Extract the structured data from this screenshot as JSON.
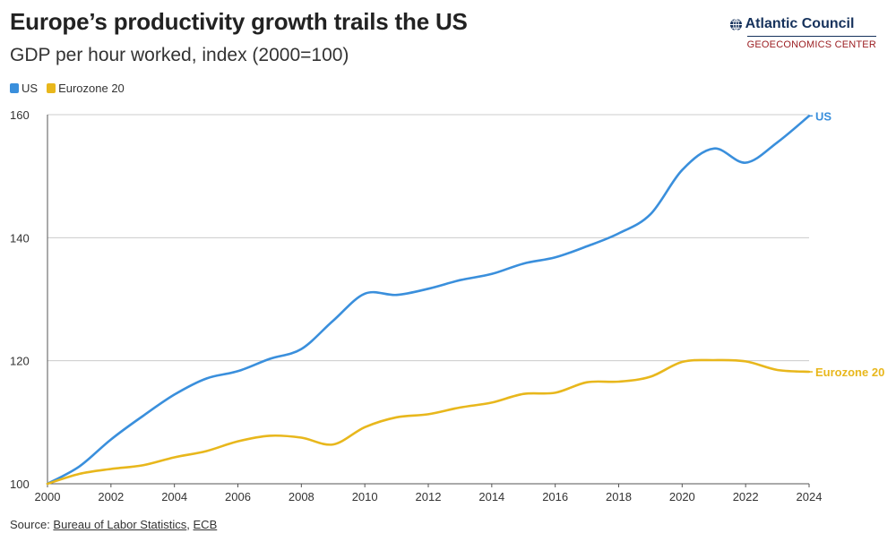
{
  "header": {
    "title": "Europe’s productivity growth trails the US",
    "subtitle": "GDP per hour worked, index (2000=100)"
  },
  "brand": {
    "name": "Atlantic Council",
    "center": "GEOECONOMICS CENTER"
  },
  "source": {
    "prefix": "Source: ",
    "link1": "Bureau of Labor Statistics",
    "sep": ", ",
    "link2": "ECB"
  },
  "chart_data": {
    "type": "line",
    "title": "Europe’s productivity growth trails the US",
    "subtitle": "GDP per hour worked, index (2000=100)",
    "xlabel": "",
    "ylabel": "",
    "xlim": [
      2000,
      2024
    ],
    "ylim": [
      100,
      160
    ],
    "xticks": [
      2000,
      2002,
      2004,
      2006,
      2008,
      2010,
      2012,
      2014,
      2016,
      2018,
      2020,
      2022,
      2024
    ],
    "yticks": [
      100,
      120,
      140,
      160
    ],
    "grid": "horizontal",
    "legend_position": "top-left",
    "x": [
      2000,
      2001,
      2002,
      2003,
      2004,
      2005,
      2006,
      2007,
      2008,
      2009,
      2010,
      2011,
      2012,
      2013,
      2014,
      2015,
      2016,
      2017,
      2018,
      2019,
      2020,
      2021,
      2022,
      2023,
      2024
    ],
    "series": [
      {
        "name": "US",
        "color": "#3a8fdc",
        "end_label": "US",
        "values": [
          100.0,
          102.8,
          107.2,
          111.0,
          114.5,
          117.1,
          118.3,
          120.3,
          121.9,
          126.5,
          130.9,
          130.7,
          131.7,
          133.1,
          134.1,
          135.8,
          136.8,
          138.6,
          140.7,
          143.8,
          151.0,
          154.5,
          152.2,
          155.5,
          159.8
        ]
      },
      {
        "name": "Eurozone 20",
        "color": "#e8b71c",
        "end_label": "Eurozone 20",
        "values": [
          100.0,
          101.6,
          102.4,
          103.0,
          104.3,
          105.3,
          106.9,
          107.8,
          107.5,
          106.4,
          109.2,
          110.8,
          111.3,
          112.4,
          113.2,
          114.6,
          114.8,
          116.5,
          116.6,
          117.4,
          119.8,
          120.1,
          119.9,
          118.5,
          118.2
        ]
      }
    ]
  }
}
